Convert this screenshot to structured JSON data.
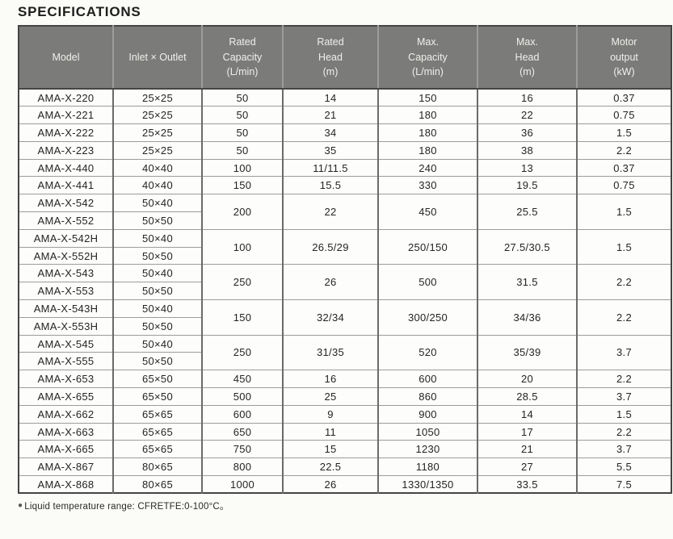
{
  "page_title": "SPECIFICATIONS",
  "table": {
    "columns": [
      {
        "id": "model",
        "lines": [
          "Model"
        ]
      },
      {
        "id": "inlet_outlet",
        "lines": [
          "Inlet × Outlet"
        ]
      },
      {
        "id": "rated_capacity",
        "lines": [
          "Rated",
          "Capacity",
          "(L/min)"
        ]
      },
      {
        "id": "rated_head",
        "lines": [
          "Rated",
          "Head",
          "(m)"
        ]
      },
      {
        "id": "max_capacity",
        "lines": [
          "Max.",
          "Capacity",
          "(L/min)"
        ]
      },
      {
        "id": "max_head",
        "lines": [
          "Max.",
          "Head",
          "(m)"
        ]
      },
      {
        "id": "motor_output",
        "lines": [
          "Motor",
          "output",
          "(kW)"
        ]
      }
    ],
    "rows": [
      {
        "model": "AMA-X-220",
        "inlet_outlet": "25×25",
        "rated_capacity": "50",
        "rated_head": "14",
        "max_capacity": "150",
        "max_head": "16",
        "motor_output": "0.37"
      },
      {
        "model": "AMA-X-221",
        "inlet_outlet": "25×25",
        "rated_capacity": "50",
        "rated_head": "21",
        "max_capacity": "180",
        "max_head": "22",
        "motor_output": "0.75"
      },
      {
        "model": "AMA-X-222",
        "inlet_outlet": "25×25",
        "rated_capacity": "50",
        "rated_head": "34",
        "max_capacity": "180",
        "max_head": "36",
        "motor_output": "1.5"
      },
      {
        "model": "AMA-X-223",
        "inlet_outlet": "25×25",
        "rated_capacity": "50",
        "rated_head": "35",
        "max_capacity": "180",
        "max_head": "38",
        "motor_output": "2.2"
      },
      {
        "model": "AMA-X-440",
        "inlet_outlet": "40×40",
        "rated_capacity": "100",
        "rated_head": "11/11.5",
        "max_capacity": "240",
        "max_head": "13",
        "motor_output": "0.37"
      },
      {
        "model": "AMA-X-441",
        "inlet_outlet": "40×40",
        "rated_capacity": "150",
        "rated_head": "15.5",
        "max_capacity": "330",
        "max_head": "19.5",
        "motor_output": "0.75"
      },
      {
        "model": "AMA-X-542",
        "inlet_outlet": "50×40",
        "span": 2,
        "rated_capacity": "200",
        "rated_head": "22",
        "max_capacity": "450",
        "max_head": "25.5",
        "motor_output": "1.5"
      },
      {
        "model": "AMA-X-552",
        "inlet_outlet": "50×50"
      },
      {
        "model": "AMA-X-542H",
        "inlet_outlet": "50×40",
        "span": 2,
        "rated_capacity": "100",
        "rated_head": "26.5/29",
        "max_capacity": "250/150",
        "max_head": "27.5/30.5",
        "motor_output": "1.5"
      },
      {
        "model": "AMA-X-552H",
        "inlet_outlet": "50×50"
      },
      {
        "model": "AMA-X-543",
        "inlet_outlet": "50×40",
        "span": 2,
        "rated_capacity": "250",
        "rated_head": "26",
        "max_capacity": "500",
        "max_head": "31.5",
        "motor_output": "2.2"
      },
      {
        "model": "AMA-X-553",
        "inlet_outlet": "50×50"
      },
      {
        "model": "AMA-X-543H",
        "inlet_outlet": "50×40",
        "span": 2,
        "rated_capacity": "150",
        "rated_head": "32/34",
        "max_capacity": "300/250",
        "max_head": "34/36",
        "motor_output": "2.2"
      },
      {
        "model": "AMA-X-553H",
        "inlet_outlet": "50×50"
      },
      {
        "model": "AMA-X-545",
        "inlet_outlet": "50×40",
        "span": 2,
        "rated_capacity": "250",
        "rated_head": "31/35",
        "max_capacity": "520",
        "max_head": "35/39",
        "motor_output": "3.7"
      },
      {
        "model": "AMA-X-555",
        "inlet_outlet": "50×50"
      },
      {
        "model": "AMA-X-653",
        "inlet_outlet": "65×50",
        "rated_capacity": "450",
        "rated_head": "16",
        "max_capacity": "600",
        "max_head": "20",
        "motor_output": "2.2"
      },
      {
        "model": "AMA-X-655",
        "inlet_outlet": "65×50",
        "rated_capacity": "500",
        "rated_head": "25",
        "max_capacity": "860",
        "max_head": "28.5",
        "motor_output": "3.7"
      },
      {
        "model": "AMA-X-662",
        "inlet_outlet": "65×65",
        "rated_capacity": "600",
        "rated_head": "9",
        "max_capacity": "900",
        "max_head": "14",
        "motor_output": "1.5"
      },
      {
        "model": "AMA-X-663",
        "inlet_outlet": "65×65",
        "rated_capacity": "650",
        "rated_head": "11",
        "max_capacity": "1050",
        "max_head": "17",
        "motor_output": "2.2"
      },
      {
        "model": "AMA-X-665",
        "inlet_outlet": "65×65",
        "rated_capacity": "750",
        "rated_head": "15",
        "max_capacity": "1230",
        "max_head": "21",
        "motor_output": "3.7"
      },
      {
        "model": "AMA-X-867",
        "inlet_outlet": "80×65",
        "rated_capacity": "800",
        "rated_head": "22.5",
        "max_capacity": "1180",
        "max_head": "27",
        "motor_output": "5.5"
      },
      {
        "model": "AMA-X-868",
        "inlet_outlet": "80×65",
        "rated_capacity": "1000",
        "rated_head": "26",
        "max_capacity": "1330/1350",
        "max_head": "33.5",
        "motor_output": "7.5"
      }
    ]
  },
  "footnote": {
    "bullet": "●",
    "text": "Liquid temperature range: CFRETFE:0-100°C。"
  },
  "colors": {
    "header_bg": "#7b7b79",
    "header_text": "#efefec",
    "border_dark": "#454543",
    "row_text": "#242424",
    "page_bg": "#fbfbf8"
  }
}
